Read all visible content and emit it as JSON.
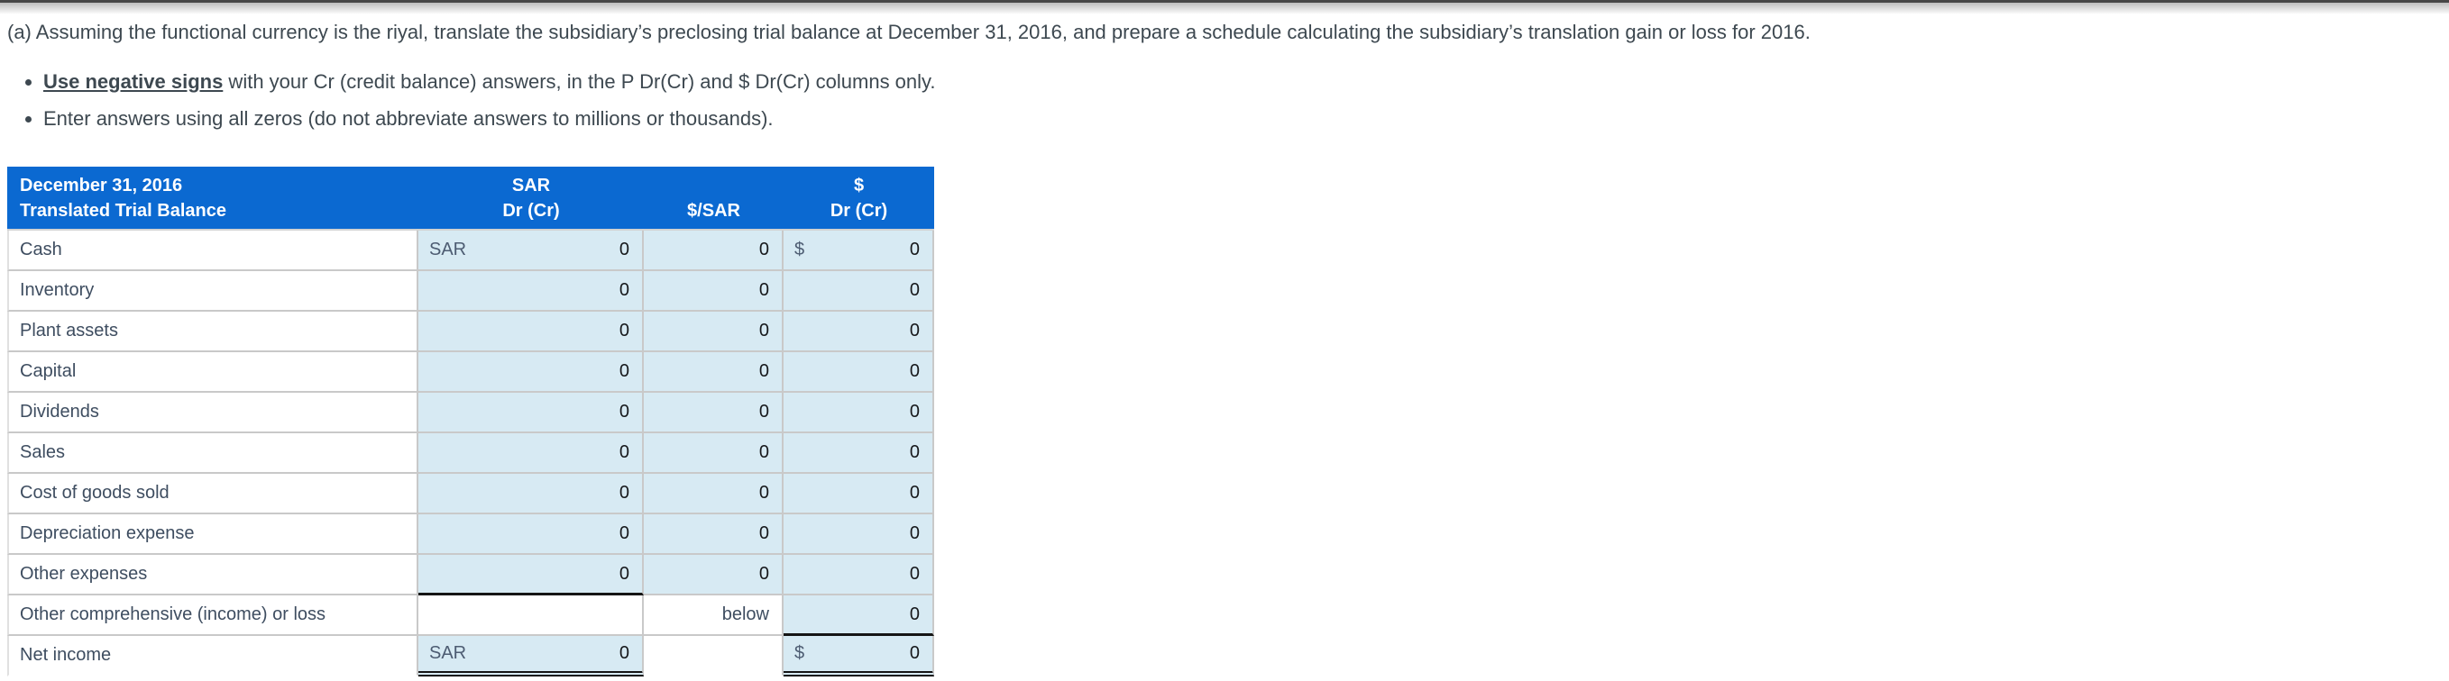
{
  "page": {
    "instruction": "(a) Assuming the functional currency is the riyal, translate the subsidiary’s preclosing trial balance at December 31, 2016, and prepare a schedule calculating the subsidiary’s translation gain or loss for 2016.",
    "bullets": {
      "b1_bold": "Use negative signs",
      "b1_rest": " with your Cr (credit balance) answers, in the P Dr(Cr) and $ Dr(Cr) columns only.",
      "b2": "Enter answers using all zeros (do not abbreviate answers to millions or thousands)."
    }
  },
  "table": {
    "header": {
      "col1": [
        "December 31, 2016",
        "Translated Trial Balance"
      ],
      "col2": [
        "SAR",
        "Dr (Cr)"
      ],
      "col3": [
        "",
        "$/SAR"
      ],
      "col4": [
        "$",
        "Dr (Cr)"
      ]
    },
    "rows": [
      {
        "label": "Cash",
        "sar": {
          "type": "input",
          "prefix": "SAR",
          "value": "0"
        },
        "rate": {
          "type": "input",
          "value": "0"
        },
        "usd": {
          "type": "input",
          "prefix": "$",
          "value": "0"
        }
      },
      {
        "label": "Inventory",
        "sar": {
          "type": "input",
          "value": "0"
        },
        "rate": {
          "type": "input",
          "value": "0"
        },
        "usd": {
          "type": "input",
          "value": "0"
        }
      },
      {
        "label": "Plant assets",
        "sar": {
          "type": "input",
          "value": "0"
        },
        "rate": {
          "type": "input",
          "value": "0"
        },
        "usd": {
          "type": "input",
          "value": "0"
        }
      },
      {
        "label": "Capital",
        "sar": {
          "type": "input",
          "value": "0"
        },
        "rate": {
          "type": "input",
          "value": "0"
        },
        "usd": {
          "type": "input",
          "value": "0"
        }
      },
      {
        "label": "Dividends",
        "sar": {
          "type": "input",
          "value": "0"
        },
        "rate": {
          "type": "input",
          "value": "0"
        },
        "usd": {
          "type": "input",
          "value": "0"
        }
      },
      {
        "label": "Sales",
        "sar": {
          "type": "input",
          "value": "0"
        },
        "rate": {
          "type": "input",
          "value": "0"
        },
        "usd": {
          "type": "input",
          "value": "0"
        }
      },
      {
        "label": "Cost of goods sold",
        "sar": {
          "type": "input",
          "value": "0"
        },
        "rate": {
          "type": "input",
          "value": "0"
        },
        "usd": {
          "type": "input",
          "value": "0"
        }
      },
      {
        "label": "Depreciation expense",
        "sar": {
          "type": "input",
          "value": "0"
        },
        "rate": {
          "type": "input",
          "value": "0"
        },
        "usd": {
          "type": "input",
          "value": "0"
        }
      },
      {
        "label": "Other expenses",
        "sar": {
          "type": "input",
          "value": "0",
          "underline": "single"
        },
        "rate": {
          "type": "input",
          "value": "0"
        },
        "usd": {
          "type": "input",
          "value": "0"
        }
      },
      {
        "label": "Other comprehensive (income) or loss",
        "sar": {
          "type": "blank"
        },
        "rate": {
          "type": "static",
          "value": "below"
        },
        "usd": {
          "type": "input",
          "value": "0",
          "underline": "single"
        }
      },
      {
        "label": "Net income",
        "last": true,
        "sar": {
          "type": "input",
          "prefix": "SAR",
          "value": "0",
          "underline": "double"
        },
        "rate": {
          "type": "blank"
        },
        "usd": {
          "type": "input",
          "prefix": "$",
          "value": "0",
          "underline": "double"
        }
      }
    ],
    "colors": {
      "header_bg": "#0b69d1",
      "cell_bg": "#d7eaf3",
      "grid": "#c9c9c9",
      "underline": "#151515"
    }
  }
}
